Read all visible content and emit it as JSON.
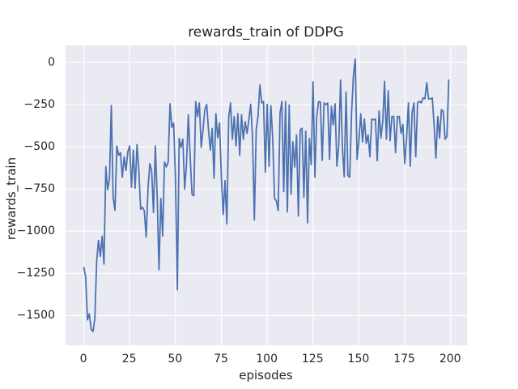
{
  "figure": {
    "background": "#ffffff"
  },
  "chart_data": {
    "type": "line",
    "title": "rewards_train of DDPG",
    "xlabel": "episodes",
    "ylabel": "rewards_train",
    "x_ticks": [
      0,
      25,
      50,
      75,
      100,
      125,
      150,
      175,
      200
    ],
    "y_ticks": [
      0,
      -250,
      -500,
      -750,
      -1000,
      -1250,
      -1500
    ],
    "xlim": [
      -9.95,
      208.95
    ],
    "ylim": [
      -1676,
      101
    ],
    "grid": true,
    "legend": "none",
    "style": {
      "axes_background": "#eaeaf2",
      "grid_color": "#ffffff",
      "line_color": "#4c72b0",
      "text_color": "#262626"
    },
    "series": [
      {
        "name": "rewards_train",
        "x_start": 0,
        "x_step": 1,
        "values": [
          -1215,
          -1270,
          -1525,
          -1490,
          -1580,
          -1595,
          -1520,
          -1180,
          -1055,
          -1150,
          -1030,
          -1195,
          -618,
          -755,
          -690,
          -255,
          -800,
          -877,
          -495,
          -550,
          -535,
          -680,
          -560,
          -640,
          -530,
          -495,
          -740,
          -520,
          -745,
          -487,
          -640,
          -870,
          -858,
          -880,
          -1035,
          -750,
          -600,
          -645,
          -890,
          -495,
          -790,
          -1228,
          -806,
          -1029,
          -590,
          -620,
          -590,
          -245,
          -385,
          -360,
          -700,
          -1348,
          -450,
          -503,
          -455,
          -750,
          -600,
          -311,
          -559,
          -782,
          -790,
          -232,
          -320,
          -240,
          -503,
          -399,
          -280,
          -250,
          -400,
          -520,
          -391,
          -686,
          -304,
          -447,
          -359,
          -680,
          -901,
          -700,
          -957,
          -327,
          -240,
          -455,
          -320,
          -495,
          -304,
          -550,
          -311,
          -455,
          -351,
          -420,
          -340,
          -248,
          -440,
          -933,
          -400,
          -320,
          -133,
          -240,
          -232,
          -650,
          -248,
          -615,
          -256,
          -450,
          -806,
          -820,
          -878,
          -300,
          -232,
          -766,
          -232,
          -886,
          -252,
          -780,
          -470,
          -620,
          -430,
          -910,
          -400,
          -390,
          -800,
          -407,
          -950,
          -450,
          -606,
          -115,
          -680,
          -320,
          -232,
          -235,
          -580,
          -240,
          -250,
          -240,
          -575,
          -260,
          -370,
          -245,
          -615,
          -495,
          -104,
          -500,
          -678,
          -176,
          -670,
          -680,
          -300,
          -80,
          20,
          -575,
          -463,
          -304,
          -471,
          -335,
          -480,
          -430,
          -559,
          -336,
          -340,
          -336,
          -583,
          -288,
          -448,
          -350,
          -112,
          -455,
          -168,
          -463,
          -320,
          -320,
          -535,
          -320,
          -320,
          -420,
          -368,
          -599,
          -450,
          -240,
          -615,
          -300,
          -240,
          -559,
          -240,
          -230,
          -240,
          -210,
          -215,
          -120,
          -216,
          -216,
          -210,
          -368,
          -567,
          -320,
          -448,
          -280,
          -290,
          -455,
          -440,
          -105
        ]
      }
    ]
  }
}
